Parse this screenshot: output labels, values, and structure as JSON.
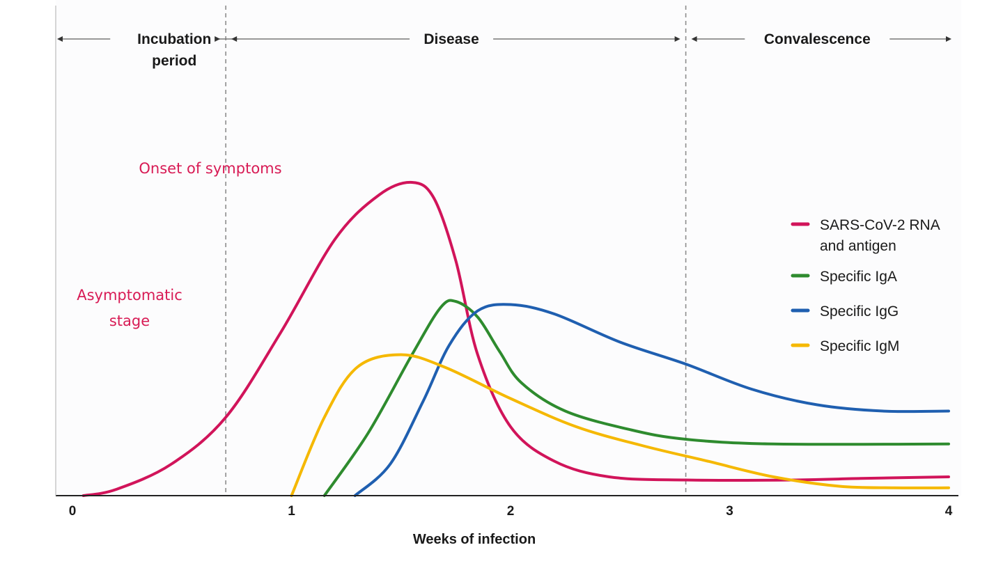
{
  "chart_data": {
    "type": "line",
    "title": "",
    "xlabel": "Weeks of infection",
    "ylabel": "",
    "xlim": [
      0,
      4
    ],
    "ylim": [
      0,
      100
    ],
    "x_ticks": [
      "0",
      "1",
      "2",
      "3",
      "4"
    ],
    "phases": [
      {
        "label_lines": [
          "Incubation",
          "period"
        ],
        "start": 0,
        "end": 0.7
      },
      {
        "label_lines": [
          "Disease"
        ],
        "start": 0.7,
        "end": 2.8
      },
      {
        "label_lines": [
          "Convalescence"
        ],
        "start": 2.8,
        "end": 4
      }
    ],
    "phase_boundaries": [
      0.7,
      2.8
    ],
    "annotations": [
      {
        "lines": [
          "Onset of symptoms"
        ],
        "color": "#d81b55"
      },
      {
        "lines": [
          "Asymptomatic",
          "stage"
        ],
        "color": "#d81b55"
      }
    ],
    "series": [
      {
        "name": "SARS-CoV-2 RNA and antigen",
        "legend_lines": [
          "SARS-CoV-2 RNA",
          "and antigen"
        ],
        "color": "#d1145a",
        "points": [
          [
            0.05,
            0
          ],
          [
            0.2,
            2
          ],
          [
            0.45,
            10
          ],
          [
            0.7,
            25
          ],
          [
            0.95,
            52
          ],
          [
            1.2,
            82
          ],
          [
            1.4,
            96
          ],
          [
            1.55,
            100
          ],
          [
            1.65,
            95
          ],
          [
            1.75,
            75
          ],
          [
            1.85,
            45
          ],
          [
            2.0,
            22
          ],
          [
            2.2,
            11
          ],
          [
            2.45,
            6
          ],
          [
            2.8,
            5
          ],
          [
            3.3,
            5
          ],
          [
            3.6,
            5.5
          ],
          [
            4.0,
            6
          ]
        ]
      },
      {
        "name": "Specific IgA",
        "legend_lines": [
          "Specific IgA"
        ],
        "color": "#2e8b2e",
        "points": [
          [
            1.15,
            0
          ],
          [
            1.35,
            20
          ],
          [
            1.55,
            45
          ],
          [
            1.68,
            60
          ],
          [
            1.75,
            62
          ],
          [
            1.85,
            57
          ],
          [
            1.95,
            46
          ],
          [
            2.05,
            36
          ],
          [
            2.25,
            27
          ],
          [
            2.55,
            21
          ],
          [
            2.8,
            18
          ],
          [
            3.2,
            16.5
          ],
          [
            4.0,
            16.5
          ]
        ]
      },
      {
        "name": "Specific IgG",
        "legend_lines": [
          "Specific IgG"
        ],
        "color": "#1f5fb0",
        "points": [
          [
            1.29,
            0
          ],
          [
            1.45,
            10
          ],
          [
            1.6,
            30
          ],
          [
            1.72,
            48
          ],
          [
            1.85,
            59
          ],
          [
            2.0,
            61
          ],
          [
            2.2,
            58
          ],
          [
            2.5,
            49
          ],
          [
            2.8,
            42
          ],
          [
            3.1,
            34
          ],
          [
            3.4,
            29
          ],
          [
            3.7,
            27
          ],
          [
            4.0,
            27
          ]
        ]
      },
      {
        "name": "Specific IgM",
        "legend_lines": [
          "Specific IgM"
        ],
        "color": "#f5b800",
        "points": [
          [
            1.0,
            0
          ],
          [
            1.15,
            25
          ],
          [
            1.3,
            41
          ],
          [
            1.5,
            45
          ],
          [
            1.7,
            41
          ],
          [
            2.0,
            31
          ],
          [
            2.3,
            22
          ],
          [
            2.6,
            16
          ],
          [
            2.9,
            11
          ],
          [
            3.2,
            6
          ],
          [
            3.5,
            3
          ],
          [
            3.75,
            2.5
          ],
          [
            4.0,
            2.5
          ]
        ]
      }
    ]
  }
}
